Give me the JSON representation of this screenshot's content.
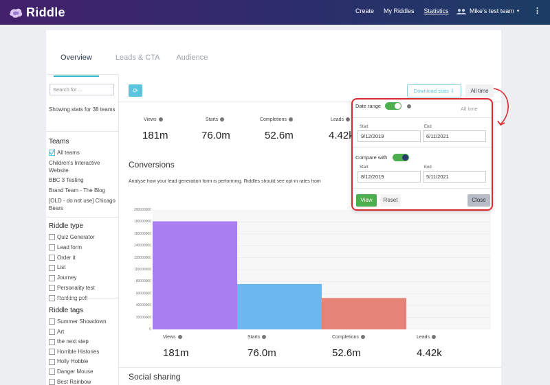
{
  "header": {
    "logo_text": "Riddle",
    "nav": [
      "Create",
      "My Riddles",
      "Statistics"
    ],
    "team": "Mike's test team",
    "more": "⋮"
  },
  "tabs": [
    "Overview",
    "Leads & CTA",
    "Audience"
  ],
  "sidebar": {
    "search_placeholder": "Search for ...",
    "showing": "Showing stats for 38 teams",
    "teams_title": "Teams",
    "teams": [
      "All teams",
      "Children's Interactive Website",
      "BBC 3 Testing",
      "Brand Team - The Blog",
      "[OLD - do not use] Chicago Bears"
    ],
    "type_title": "Riddle type",
    "types": [
      "Quiz Generator",
      "Lead form",
      "Order it",
      "List",
      "Journey",
      "Personality test",
      "Ranking poll"
    ],
    "tags_title": "Riddle tags",
    "tags": [
      "Summer Showdown",
      "Art",
      "the next step",
      "Horrible Histories",
      "Holly Hobbie",
      "Danger Mouse",
      "Best Rainbow"
    ]
  },
  "toolbar": {
    "refresh_icon": "refresh-icon",
    "download_label": "Download stats ⇩",
    "alltime_label": "All time"
  },
  "stats_top": [
    {
      "label": "Views",
      "value": "181m"
    },
    {
      "label": "Starts",
      "value": "76.0m"
    },
    {
      "label": "Completions",
      "value": "52.6m"
    },
    {
      "label": "Leads",
      "value": "4.42k"
    }
  ],
  "conversions": {
    "title": "Conversions",
    "description": "Analyse how your lead generation form is performing. Riddles should see opt-in rates from"
  },
  "chart_data": {
    "type": "bar",
    "categories": [
      "Views",
      "Starts",
      "Completions",
      "Leads"
    ],
    "values": [
      181000000,
      76000000,
      52600000,
      4420
    ],
    "colors": [
      "#a97ef0",
      "#6cb7ef",
      "#e58476",
      "#e5c06b"
    ],
    "ylim": [
      0,
      200000000
    ],
    "yticks": [
      "200000000",
      "180000000",
      "160000000",
      "140000000",
      "120000000",
      "100000000",
      "80000000",
      "60000000",
      "40000000",
      "20000000",
      "0"
    ],
    "value_labels": [
      "181m",
      "76.0m",
      "52.6m",
      "4.42k"
    ]
  },
  "social": {
    "title": "Social sharing"
  },
  "popup": {
    "date_range_label": "Date range",
    "all_time_label": "All time",
    "start_label": "Start",
    "end_label": "End",
    "start_value": "9/12/2019",
    "end_value": "6/11/2021",
    "compare_label": "Compare with",
    "compare_start_value": "8/12/2019",
    "compare_end_value": "5/11/2021",
    "view_label": "View",
    "reset_label": "Reset",
    "close_label": "Close"
  },
  "colors": {
    "accent": "#5bc4de",
    "highlight": "#d9292f",
    "green": "#4cae4c"
  }
}
